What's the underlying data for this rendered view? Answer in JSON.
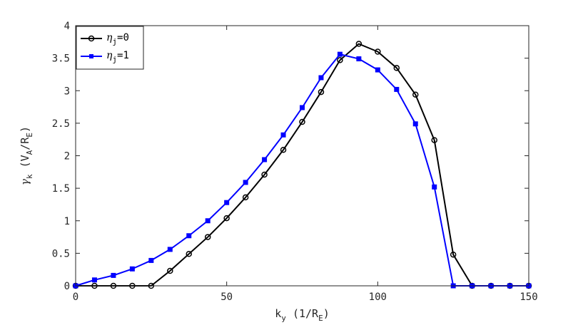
{
  "chart_data": {
    "type": "line",
    "title": "",
    "xlabel": {
      "main": "k",
      "sub": "y",
      "rest": " (1/R",
      "sub2": "E",
      "close": ")"
    },
    "ylabel": {
      "main": "γ",
      "sub": "k",
      "rest": " (V",
      "sub2": "A",
      "mid": "/R",
      "sub3": "E",
      "close": ")"
    },
    "xlim": [
      0,
      150
    ],
    "ylim": [
      0,
      4
    ],
    "xticks": [
      0,
      50,
      100,
      150
    ],
    "xtick_labels": [
      "0",
      "50",
      "100",
      "150"
    ],
    "yticks": [
      0,
      0.5,
      1,
      1.5,
      2,
      2.5,
      3,
      3.5,
      4
    ],
    "ytick_labels": [
      "0",
      "0.5",
      "1",
      "1.5",
      "2",
      "2.5",
      "3",
      "3.5",
      "4"
    ],
    "grid": false,
    "legend_position": "top-left",
    "series": [
      {
        "name": "η_j=0",
        "legend": {
          "main": "η",
          "sub": "j",
          "rest": "=0"
        },
        "color": "#000000",
        "marker": "circle",
        "x": [
          0,
          6.25,
          12.5,
          18.75,
          25,
          31.25,
          37.5,
          43.75,
          50,
          56.25,
          62.5,
          68.75,
          75,
          81.25,
          87.5,
          93.75,
          100,
          106.25,
          112.5,
          118.75,
          125,
          131.25,
          137.5,
          143.75,
          150
        ],
        "y": [
          0,
          0,
          0,
          0,
          0,
          0.23,
          0.49,
          0.75,
          1.04,
          1.36,
          1.71,
          2.09,
          2.52,
          2.98,
          3.47,
          3.72,
          3.6,
          3.35,
          2.94,
          2.24,
          0.48,
          0,
          0,
          0,
          0
        ]
      },
      {
        "name": "η_j=1",
        "legend": {
          "main": "η",
          "sub": "j",
          "rest": "=1"
        },
        "color": "#0000ff",
        "marker": "square",
        "x": [
          0,
          6.25,
          12.5,
          18.75,
          25,
          31.25,
          37.5,
          43.75,
          50,
          56.25,
          62.5,
          68.75,
          75,
          81.25,
          87.5,
          93.75,
          100,
          106.25,
          112.5,
          118.75,
          125,
          131.25,
          137.5,
          143.75,
          150
        ],
        "y": [
          0,
          0.09,
          0.16,
          0.26,
          0.39,
          0.56,
          0.77,
          1.0,
          1.28,
          1.59,
          1.94,
          2.32,
          2.74,
          3.2,
          3.56,
          3.49,
          3.32,
          3.02,
          2.49,
          1.52,
          0,
          0,
          0,
          0,
          0
        ]
      }
    ]
  }
}
